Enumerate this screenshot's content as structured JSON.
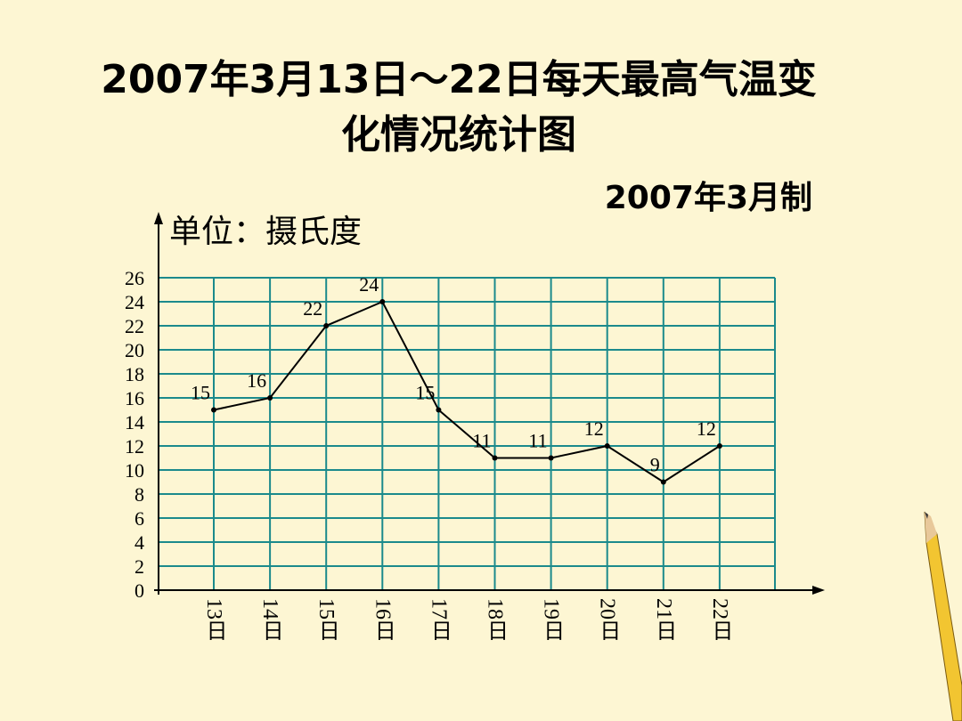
{
  "chart_data": {
    "type": "line",
    "title": [
      "2007年3月13日～22日每天最高气温变",
      "化情况统计图"
    ],
    "subtitle": "2007年3月制",
    "y_label": "单位：摄氏度",
    "categories": [
      "13日",
      "14日",
      "15日",
      "16日",
      "17日",
      "18日",
      "19日",
      "20日",
      "21日",
      "22日"
    ],
    "values": [
      15,
      16,
      22,
      24,
      15,
      11,
      11,
      12,
      9,
      12
    ],
    "color": "#000000",
    "grid_color": "#1b8a8c",
    "ylim": [
      0,
      26
    ],
    "yticks": [
      0,
      2,
      4,
      6,
      8,
      10,
      12,
      14,
      16,
      18,
      20,
      22,
      24,
      26
    ],
    "grid": true
  }
}
